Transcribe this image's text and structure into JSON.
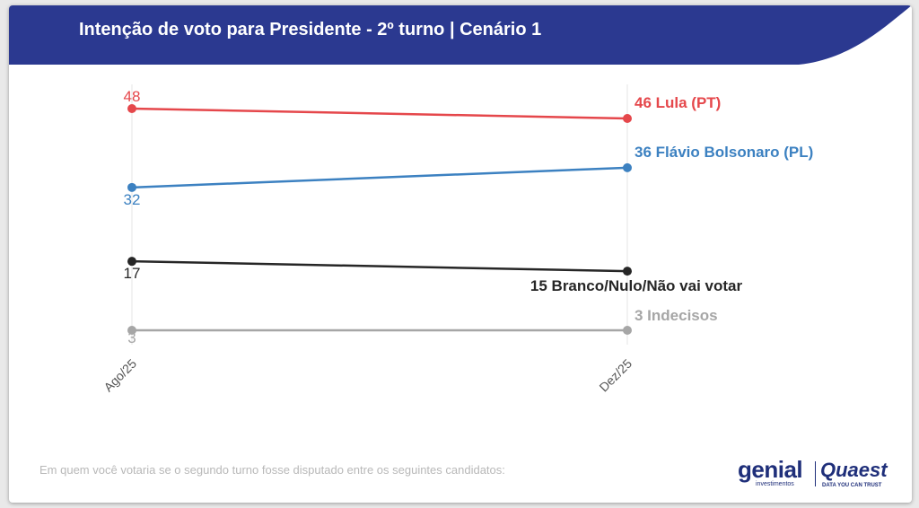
{
  "header": {
    "title": "Intenção de voto para Presidente - 2º turno | Cenário 1"
  },
  "footer": {
    "note": "Em quem você votaria se o segundo turno fosse disputado entre os seguintes candidatos:"
  },
  "logos": {
    "genial": "genial",
    "genial_sub": "investimentos",
    "quaest": "Quaest",
    "quaest_sub": "DATA YOU CAN TRUST"
  },
  "colors": {
    "header_band": "#2b3990",
    "lula": "#e5474b",
    "flavio": "#3c81c1",
    "branco": "#262626",
    "indecisos": "#a6a6a6"
  },
  "chart_data": {
    "type": "line",
    "categories": [
      "Ago/25",
      "Dez/25"
    ],
    "series": [
      {
        "name": "Lula (PT)",
        "values": [
          48,
          46
        ],
        "color": "#e5474b",
        "end_label": "46 Lula (PT)"
      },
      {
        "name": "Flávio Bolsonaro (PL)",
        "values": [
          32,
          36
        ],
        "color": "#3c81c1",
        "end_label": "36 Flávio Bolsonaro (PL)"
      },
      {
        "name": "Branco/Nulo/Não vai votar",
        "values": [
          17,
          15
        ],
        "color": "#262626",
        "end_label": "15 Branco/Nulo/Não vai votar"
      },
      {
        "name": "Indecisos",
        "values": [
          3,
          3
        ],
        "color": "#a6a6a6",
        "end_label": "3 Indecisos"
      }
    ],
    "ylim": [
      3,
      48
    ],
    "grid": "vertical",
    "legend": "none"
  }
}
